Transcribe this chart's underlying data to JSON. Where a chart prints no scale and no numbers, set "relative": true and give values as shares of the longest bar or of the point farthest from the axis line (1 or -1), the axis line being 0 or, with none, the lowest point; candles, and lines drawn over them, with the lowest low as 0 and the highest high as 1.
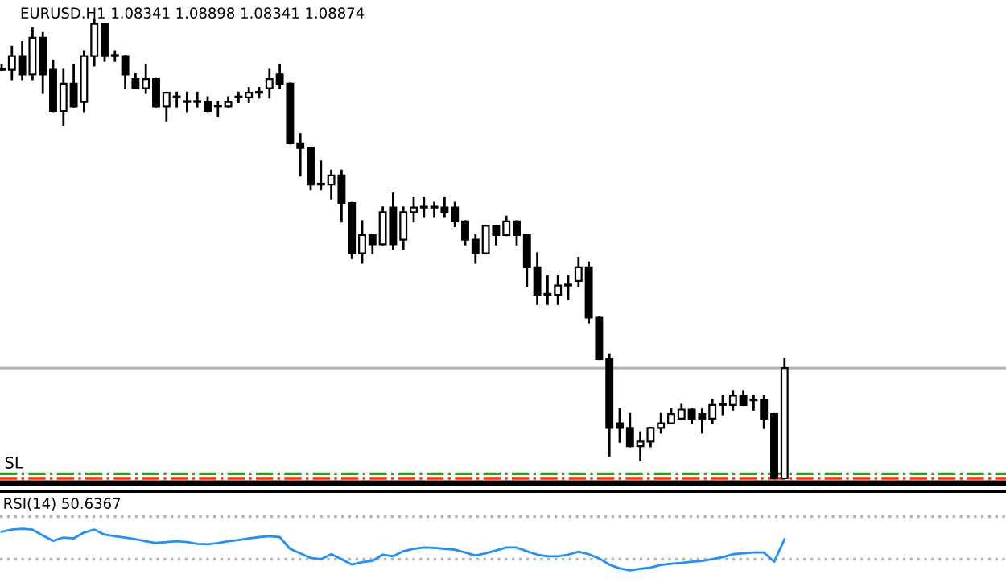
{
  "chart_data": [
    {
      "type": "candlestick",
      "title": "EURUSD.H1 1.08341 1.08898 1.08341 1.08874",
      "relative": true,
      "categories": [
        null,
        null,
        null,
        null,
        null,
        null,
        null,
        null,
        null,
        null,
        null,
        null,
        null,
        null,
        null,
        null,
        null,
        null,
        null,
        null,
        null,
        null,
        null,
        null,
        null,
        null,
        null,
        null,
        null,
        null,
        null,
        null,
        null,
        null,
        null,
        null,
        null,
        null,
        null,
        null,
        null,
        null,
        null,
        null,
        null,
        null,
        null,
        null,
        null,
        null,
        null,
        null,
        null,
        null,
        null,
        null,
        null,
        null,
        null,
        null,
        null,
        null,
        null,
        null,
        null,
        null,
        null,
        null,
        null,
        null,
        null,
        null,
        null,
        null,
        null,
        null,
        null
      ],
      "ohlc": [
        [
          0.89,
          0.9,
          0.89,
          0.89
        ],
        [
          0.89,
          0.94,
          0.87,
          0.92
        ],
        [
          0.92,
          0.95,
          0.87,
          0.88
        ],
        [
          0.88,
          0.98,
          0.87,
          0.96
        ],
        [
          0.96,
          0.97,
          0.84,
          0.88
        ],
        [
          0.89,
          0.91,
          0.8,
          0.8
        ],
        [
          0.8,
          0.89,
          0.77,
          0.86
        ],
        [
          0.86,
          0.9,
          0.81,
          0.81
        ],
        [
          0.82,
          0.93,
          0.8,
          0.92
        ],
        [
          0.92,
          1.0,
          0.9,
          0.99
        ],
        [
          0.99,
          0.99,
          0.91,
          0.92
        ],
        [
          0.92,
          0.93,
          0.91,
          0.92
        ],
        [
          0.92,
          0.92,
          0.85,
          0.88
        ],
        [
          0.87,
          0.88,
          0.85,
          0.85
        ],
        [
          0.85,
          0.9,
          0.84,
          0.87
        ],
        [
          0.87,
          0.87,
          0.81,
          0.81
        ],
        [
          0.81,
          0.84,
          0.78,
          0.84
        ],
        [
          0.83,
          0.84,
          0.81,
          0.83
        ],
        [
          0.82,
          0.84,
          0.8,
          0.82
        ],
        [
          0.82,
          0.84,
          0.81,
          0.82
        ],
        [
          0.82,
          0.83,
          0.8,
          0.8
        ],
        [
          0.81,
          0.82,
          0.79,
          0.81
        ],
        [
          0.81,
          0.83,
          0.81,
          0.82
        ],
        [
          0.83,
          0.84,
          0.82,
          0.83
        ],
        [
          0.83,
          0.85,
          0.82,
          0.84
        ],
        [
          0.84,
          0.85,
          0.83,
          0.84
        ],
        [
          0.85,
          0.89,
          0.83,
          0.87
        ],
        [
          0.88,
          0.9,
          0.85,
          0.86
        ],
        [
          0.86,
          0.86,
          0.73,
          0.73
        ],
        [
          0.73,
          0.75,
          0.66,
          0.72
        ],
        [
          0.72,
          0.72,
          0.63,
          0.64
        ],
        [
          0.64,
          0.69,
          0.63,
          0.64
        ],
        [
          0.64,
          0.67,
          0.61,
          0.66
        ],
        [
          0.66,
          0.67,
          0.56,
          0.6
        ],
        [
          0.6,
          0.6,
          0.48,
          0.49
        ],
        [
          0.49,
          0.56,
          0.47,
          0.53
        ],
        [
          0.53,
          0.53,
          0.49,
          0.51
        ],
        [
          0.51,
          0.59,
          0.51,
          0.58
        ],
        [
          0.59,
          0.62,
          0.5,
          0.51
        ],
        [
          0.52,
          0.59,
          0.5,
          0.58
        ],
        [
          0.58,
          0.61,
          0.56,
          0.59
        ],
        [
          0.59,
          0.61,
          0.57,
          0.59
        ],
        [
          0.59,
          0.6,
          0.57,
          0.59
        ],
        [
          0.59,
          0.61,
          0.57,
          0.58
        ],
        [
          0.59,
          0.6,
          0.55,
          0.56
        ],
        [
          0.56,
          0.56,
          0.51,
          0.52
        ],
        [
          0.52,
          0.53,
          0.47,
          0.49
        ],
        [
          0.49,
          0.55,
          0.49,
          0.55
        ],
        [
          0.55,
          0.55,
          0.51,
          0.53
        ],
        [
          0.53,
          0.57,
          0.53,
          0.56
        ],
        [
          0.56,
          0.56,
          0.51,
          0.53
        ],
        [
          0.53,
          0.53,
          0.42,
          0.46
        ],
        [
          0.46,
          0.49,
          0.38,
          0.4
        ],
        [
          0.4,
          0.44,
          0.38,
          0.4
        ],
        [
          0.4,
          0.44,
          0.38,
          0.42
        ],
        [
          0.42,
          0.44,
          0.39,
          0.42
        ],
        [
          0.43,
          0.48,
          0.42,
          0.46
        ],
        [
          0.46,
          0.47,
          0.34,
          0.35
        ],
        [
          0.35,
          0.35,
          0.26,
          0.26
        ],
        [
          0.26,
          0.27,
          0.05,
          0.11
        ],
        [
          0.12,
          0.15,
          0.08,
          0.11
        ],
        [
          0.11,
          0.14,
          0.07,
          0.07
        ],
        [
          0.07,
          0.1,
          0.04,
          0.08
        ],
        [
          0.08,
          0.11,
          0.07,
          0.11
        ],
        [
          0.11,
          0.14,
          0.1,
          0.12
        ],
        [
          0.12,
          0.15,
          0.12,
          0.14
        ],
        [
          0.13,
          0.16,
          0.13,
          0.15
        ],
        [
          0.15,
          0.15,
          0.12,
          0.13
        ],
        [
          0.14,
          0.15,
          0.1,
          0.13
        ],
        [
          0.13,
          0.17,
          0.12,
          0.16
        ],
        [
          0.16,
          0.18,
          0.14,
          0.16
        ],
        [
          0.16,
          0.19,
          0.15,
          0.18
        ],
        [
          0.18,
          0.19,
          0.16,
          0.16
        ],
        [
          0.17,
          0.18,
          0.15,
          0.17
        ],
        [
          0.17,
          0.18,
          0.11,
          0.13
        ],
        [
          0.14,
          0.14,
          0.0,
          0.0
        ],
        [
          0.0,
          0.26,
          0.0,
          0.24
        ]
      ],
      "ref_lines": [
        {
          "axis": "y",
          "value": 0.24,
          "color": "#b4b4b4",
          "line_style": "solid"
        },
        {
          "axis": "y",
          "value": 0.01,
          "color": "#2e9a2e",
          "line_style": "dashdot"
        },
        {
          "axis": "y",
          "value": 0.0,
          "color": "#ff3300",
          "line_style": "dashdot",
          "label": "SL"
        }
      ]
    },
    {
      "type": "line",
      "title": "RSI(14) 50.6367",
      "relative": true,
      "marker": "none",
      "line_style": "solid",
      "categories": [
        null,
        null,
        null,
        null,
        null,
        null,
        null,
        null,
        null,
        null,
        null,
        null,
        null,
        null,
        null,
        null,
        null,
        null,
        null,
        null,
        null,
        null,
        null,
        null,
        null,
        null,
        null,
        null,
        null,
        null,
        null,
        null,
        null,
        null,
        null,
        null,
        null,
        null,
        null,
        null,
        null,
        null,
        null,
        null,
        null,
        null,
        null,
        null,
        null,
        null,
        null,
        null,
        null,
        null,
        null,
        null,
        null,
        null,
        null,
        null,
        null,
        null,
        null,
        null,
        null,
        null,
        null,
        null,
        null,
        null,
        null,
        null,
        null,
        null,
        null,
        null,
        null
      ],
      "series": [
        {
          "color": "#1e90ff",
          "values": [
            0.93,
            0.98,
            1.0,
            0.98,
            0.84,
            0.71,
            0.79,
            0.77,
            0.91,
            0.98,
            0.86,
            0.82,
            0.79,
            0.75,
            0.7,
            0.66,
            0.68,
            0.7,
            0.68,
            0.64,
            0.63,
            0.66,
            0.7,
            0.73,
            0.77,
            0.8,
            0.82,
            0.8,
            0.52,
            0.41,
            0.3,
            0.27,
            0.39,
            0.27,
            0.14,
            0.2,
            0.23,
            0.38,
            0.34,
            0.46,
            0.52,
            0.55,
            0.54,
            0.52,
            0.5,
            0.43,
            0.36,
            0.41,
            0.48,
            0.55,
            0.55,
            0.46,
            0.38,
            0.34,
            0.34,
            0.38,
            0.45,
            0.39,
            0.29,
            0.14,
            0.05,
            0.0,
            0.04,
            0.07,
            0.13,
            0.16,
            0.18,
            0.21,
            0.23,
            0.27,
            0.32,
            0.39,
            0.41,
            0.43,
            0.43,
            0.21,
            0.75
          ]
        }
      ],
      "ref_lines": [
        {
          "axis": "y",
          "value": 1.29,
          "color": "#b4b4b4",
          "line_style": "dotted"
        },
        {
          "axis": "y",
          "value": 0.27,
          "color": "#b4b4b4",
          "line_style": "dotted"
        }
      ]
    }
  ]
}
